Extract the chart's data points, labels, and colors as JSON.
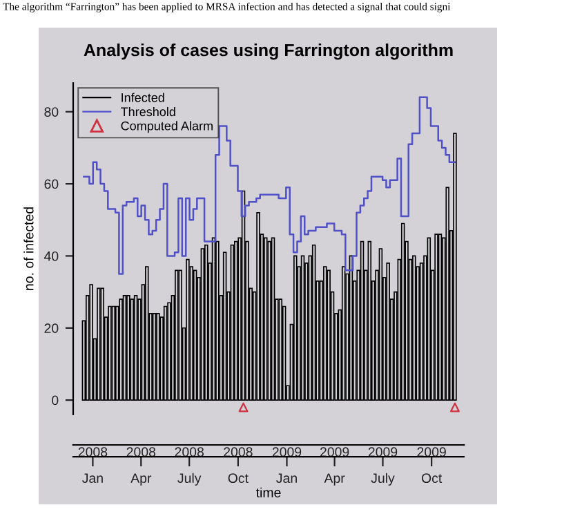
{
  "chart_data": {
    "type": "bar",
    "title": "Analysis of cases using Farrington algorithm",
    "annotations": [
      "The algorithm “Farrington” has been applied to MRSA infection and has detected a signal that could signi"
    ],
    "xlabel": "time",
    "ylabel": "no. of infected",
    "x": [
      "2007-12-15",
      "2007-12-22",
      "2007-12-29",
      "2008-01-05",
      "2008-01-12",
      "2008-01-19",
      "2008-01-26",
      "2008-02-02",
      "2008-02-09",
      "2008-02-16",
      "2008-02-23",
      "2008-03-01",
      "2008-03-08",
      "2008-03-15",
      "2008-03-22",
      "2008-03-29",
      "2008-04-05",
      "2008-04-12",
      "2008-04-19",
      "2008-04-26",
      "2008-05-03",
      "2008-05-10",
      "2008-05-17",
      "2008-05-24",
      "2008-05-31",
      "2008-06-07",
      "2008-06-14",
      "2008-06-21",
      "2008-06-28",
      "2008-07-05",
      "2008-07-12",
      "2008-07-19",
      "2008-07-26",
      "2008-08-02",
      "2008-08-09",
      "2008-08-16",
      "2008-08-23",
      "2008-08-30",
      "2008-09-06",
      "2008-09-13",
      "2008-09-20",
      "2008-09-27",
      "2008-10-04",
      "2008-10-11",
      "2008-10-18",
      "2008-10-25",
      "2008-11-01",
      "2008-11-08",
      "2008-11-15",
      "2008-11-22",
      "2008-11-29",
      "2008-12-06",
      "2008-12-13",
      "2008-12-20",
      "2008-12-27",
      "2009-01-03",
      "2009-01-10",
      "2009-01-17",
      "2009-01-24",
      "2009-01-31",
      "2009-02-07",
      "2009-02-14",
      "2009-02-21",
      "2009-02-28",
      "2009-03-07",
      "2009-03-14",
      "2009-03-21",
      "2009-03-28",
      "2009-04-04",
      "2009-04-11",
      "2009-04-18",
      "2009-04-25",
      "2009-05-02",
      "2009-05-09",
      "2009-05-16",
      "2009-05-23",
      "2009-05-30",
      "2009-06-06",
      "2009-06-13",
      "2009-06-20",
      "2009-06-27",
      "2009-07-04",
      "2009-07-11",
      "2009-07-18",
      "2009-07-25",
      "2009-08-01",
      "2009-08-08",
      "2009-08-15",
      "2009-08-22",
      "2009-08-29",
      "2009-09-05",
      "2009-09-12",
      "2009-09-19",
      "2009-09-26",
      "2009-10-03",
      "2009-10-10",
      "2009-10-17",
      "2009-10-24",
      "2009-10-31",
      "2009-11-07",
      "2009-11-14"
    ],
    "series": [
      {
        "name": "Infected",
        "color": "#000000",
        "values": [
          22,
          29,
          32,
          17,
          31,
          31,
          23,
          26,
          26,
          26,
          28,
          29,
          29,
          28,
          29,
          28,
          32,
          37,
          24,
          24,
          24,
          23,
          26,
          27,
          29,
          36,
          36,
          20,
          39,
          37,
          36,
          34,
          42,
          43,
          38,
          45,
          44,
          29,
          41,
          30,
          43,
          44,
          45,
          58,
          44,
          31,
          30,
          52,
          46,
          45,
          44,
          45,
          28,
          28,
          26,
          4,
          21,
          40,
          37,
          40,
          38,
          40,
          43,
          33,
          33,
          37,
          36,
          30,
          24,
          25,
          37,
          35,
          40,
          33,
          36,
          44,
          36,
          44,
          33,
          36,
          42,
          34,
          38,
          28,
          30,
          39,
          49,
          44,
          39,
          40,
          37,
          38,
          40,
          45,
          36,
          46,
          46,
          45,
          59,
          47,
          74
        ]
      },
      {
        "name": "Threshold",
        "type": "step",
        "color": "#5050c8",
        "values": [
          62,
          62,
          60,
          66,
          64,
          60,
          58,
          53,
          53,
          52,
          35,
          54,
          55,
          55,
          56,
          51,
          54,
          50,
          46,
          47,
          50,
          53,
          60,
          40,
          40,
          41,
          56,
          40,
          56,
          50,
          53,
          56,
          56,
          44,
          44,
          44,
          68,
          76,
          76,
          72,
          65,
          65,
          58,
          51,
          54,
          55,
          55,
          56,
          57,
          57,
          57,
          57,
          57,
          56,
          56,
          59,
          46,
          41,
          44,
          51,
          46,
          47,
          47,
          48,
          48,
          48,
          49,
          49,
          47,
          47,
          46,
          36,
          36,
          40,
          52,
          54,
          56,
          58,
          62,
          62,
          62,
          61,
          59,
          61,
          61,
          67,
          51,
          51,
          71,
          74,
          74,
          84,
          84,
          81,
          76,
          76,
          72,
          70,
          68,
          66,
          66
        ]
      },
      {
        "name": "Computed Alarm",
        "type": "scatter",
        "color": "#d03040",
        "marker": "triangle",
        "x": [
          "2008-10-11",
          "2009-11-14"
        ],
        "values": [
          -2,
          -2
        ]
      }
    ],
    "xlim": [
      "2007-11-25",
      "2009-12-01"
    ],
    "x2lim": [
      "2007-11-25",
      "2009-12-01"
    ],
    "ylim": [
      -4,
      88
    ],
    "xticks": [
      {
        "value": "2008-01-01",
        "label": "Jan"
      },
      {
        "value": "2008-04-01",
        "label": "Apr"
      },
      {
        "value": "2008-07-01",
        "label": "July"
      },
      {
        "value": "2008-10-01",
        "label": "Oct"
      },
      {
        "value": "2009-01-01",
        "label": "Jan"
      },
      {
        "value": "2009-04-01",
        "label": "Apr"
      },
      {
        "value": "2009-07-01",
        "label": "July"
      },
      {
        "value": "2009-10-01",
        "label": "Oct"
      }
    ],
    "x2ticks": [
      {
        "value": "2008-01-01",
        "label": "2008"
      },
      {
        "value": "2008-04-01",
        "label": "2008"
      },
      {
        "value": "2008-07-01",
        "label": "2008"
      },
      {
        "value": "2008-10-01",
        "label": "2008"
      },
      {
        "value": "2009-01-01",
        "label": "2009"
      },
      {
        "value": "2009-04-01",
        "label": "2009"
      },
      {
        "value": "2009-07-01",
        "label": "2009"
      },
      {
        "value": "2009-10-01",
        "label": "2009"
      }
    ],
    "yticks": [
      0,
      20,
      40,
      60,
      80
    ],
    "grid": false,
    "legend": "top left"
  }
}
